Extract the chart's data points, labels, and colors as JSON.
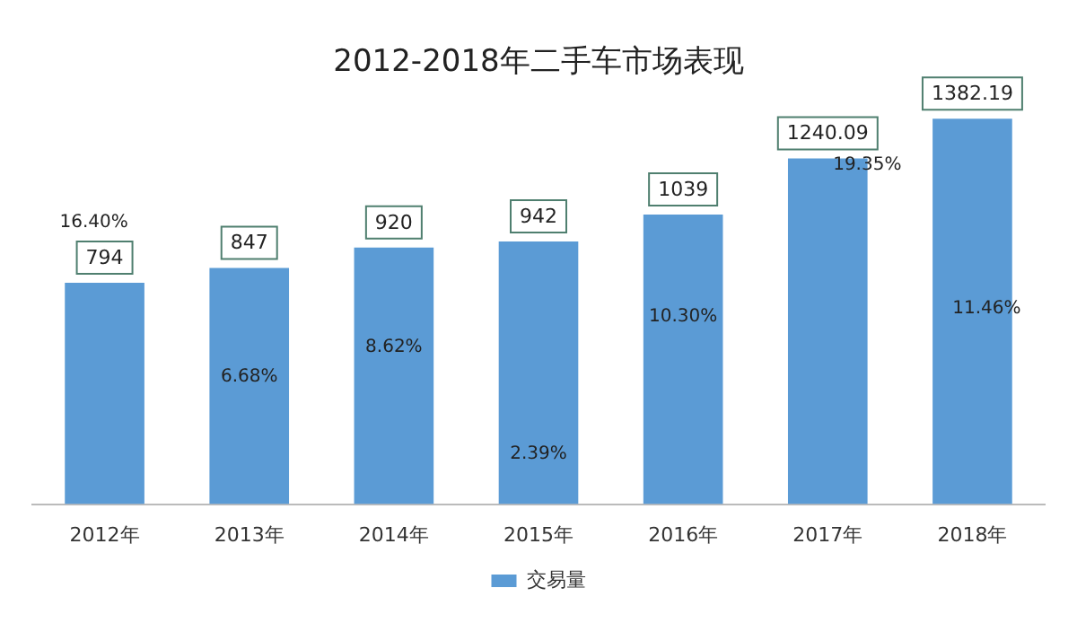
{
  "chart_data": {
    "type": "bar",
    "title": "2012-2018年二手车市场表现",
    "categories": [
      "2012年",
      "2013年",
      "2014年",
      "2015年",
      "2016年",
      "2017年",
      "2018年"
    ],
    "series": [
      {
        "name": "交易量",
        "color": "#5b9bd5",
        "values": [
          794,
          847,
          920,
          942,
          1039,
          1240.09,
          1382.19
        ]
      }
    ],
    "data_labels": true,
    "grid": false,
    "legend": "bottom",
    "tick_labels": "x",
    "annotations": [
      "16.40%",
      "6.68%",
      "8.62%",
      "2.39%",
      "10.30%",
      "19.35%",
      "11.46%"
    ]
  }
}
